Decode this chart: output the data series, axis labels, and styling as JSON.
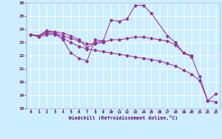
{
  "xlabel": "Windchill (Refroidissement éolien,°C)",
  "bg_color": "#cceeff",
  "grid_color": "#ffffff",
  "line_color": "#993399",
  "xlim_min": -0.5,
  "xlim_max": 23.5,
  "ylim": [
    18,
    26
  ],
  "yticks": [
    18,
    19,
    20,
    21,
    22,
    23,
    24,
    25,
    26
  ],
  "xticks": [
    0,
    1,
    2,
    3,
    4,
    5,
    6,
    7,
    8,
    9,
    10,
    11,
    12,
    13,
    14,
    15,
    16,
    17,
    18,
    19,
    20,
    21,
    22,
    23
  ],
  "series": [
    [
      23.6,
      23.5,
      23.9,
      23.8,
      23.2,
      22.2,
      21.8,
      21.6,
      23.2,
      23.1,
      null,
      null,
      null,
      null,
      null,
      null,
      null,
      null,
      null,
      null,
      null,
      null,
      null,
      null
    ],
    [
      23.6,
      23.5,
      23.8,
      23.8,
      23.7,
      23.5,
      23.2,
      22.6,
      23.0,
      23.1,
      24.7,
      24.6,
      24.8,
      25.8,
      25.8,
      25.2,
      null,
      23.5,
      23.0,
      22.2,
      22.0,
      null,
      null,
      null
    ],
    [
      23.6,
      23.5,
      23.7,
      23.7,
      23.5,
      23.3,
      23.1,
      22.9,
      22.9,
      23.0,
      23.2,
      23.2,
      23.3,
      23.4,
      23.4,
      23.3,
      23.2,
      23.1,
      22.8,
      22.2,
      21.9,
      20.4,
      18.6,
      19.1
    ],
    [
      23.6,
      23.4,
      23.6,
      23.6,
      23.3,
      23.0,
      22.7,
      22.5,
      22.4,
      22.3,
      22.2,
      22.1,
      22.0,
      21.9,
      21.8,
      21.7,
      21.6,
      21.4,
      21.2,
      20.9,
      20.6,
      20.1,
      18.6,
      18.5
    ]
  ]
}
